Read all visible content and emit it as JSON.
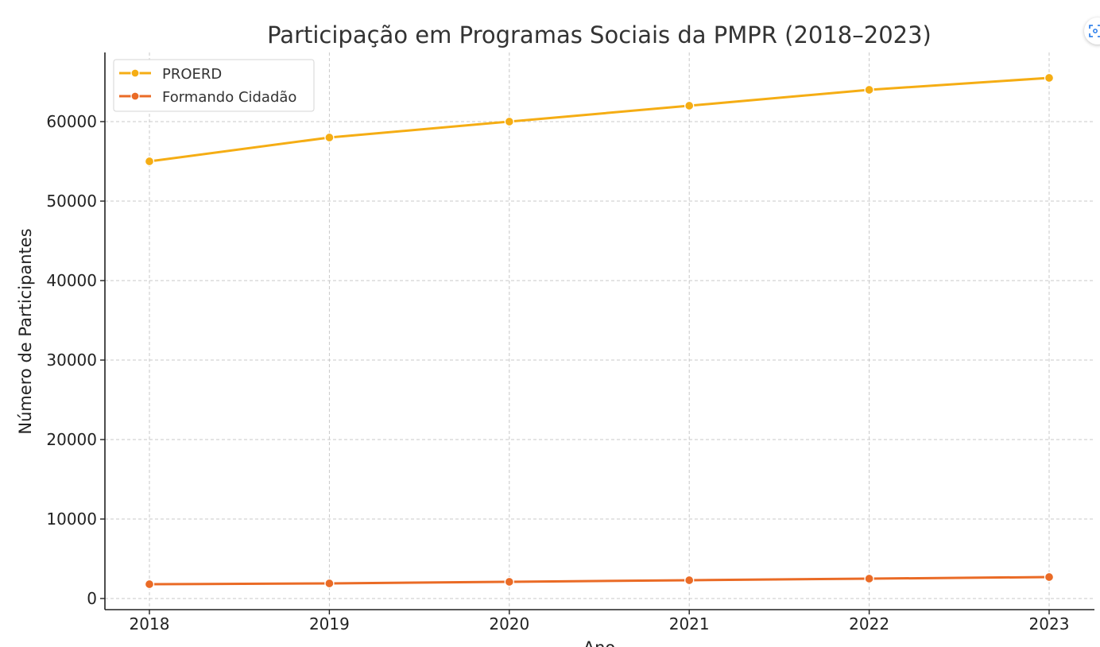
{
  "chart_data": {
    "type": "line",
    "title": "Participação em Programas Sociais da PMPR (2018–2023)",
    "xlabel": "Ano",
    "ylabel": "Número de Participantes",
    "x": [
      "2018",
      "2019",
      "2020",
      "2021",
      "2022",
      "2023"
    ],
    "y_ticks": [
      "0",
      "10000",
      "20000",
      "30000",
      "40000",
      "50000",
      "60000"
    ],
    "ylim": [
      -700,
      69000
    ],
    "grid": true,
    "legend_position": "top-left",
    "series": [
      {
        "name": "PROERD",
        "color": "#F5AD14",
        "values": [
          55000,
          58000,
          60000,
          62000,
          64000,
          65500
        ]
      },
      {
        "name": "Formando Cidadão",
        "color": "#EA6B26",
        "values": [
          1800,
          1900,
          2100,
          2300,
          2500,
          2700
        ]
      }
    ]
  },
  "ui": {
    "corner_button_icon": "scan-icon"
  }
}
